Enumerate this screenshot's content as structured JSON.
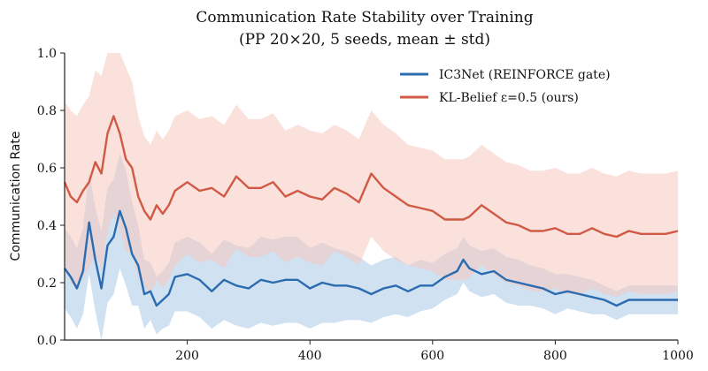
{
  "chart_data": {
    "type": "line",
    "title": "Communication Rate Stability over Training",
    "subtitle": "(PP 20×20, 5 seeds, mean ± std)",
    "xlabel": "",
    "ylabel": "Communication Rate",
    "xlim": [
      0,
      1000
    ],
    "ylim": [
      0.0,
      1.0
    ],
    "xticks": [
      200,
      400,
      600,
      800,
      1000
    ],
    "yticks": [
      0.0,
      0.2,
      0.4,
      0.6,
      0.8,
      1.0
    ],
    "xtick_labels": [
      "200",
      "400",
      "600",
      "800",
      "1000"
    ],
    "ytick_labels": [
      "0.0",
      "0.2",
      "0.4",
      "0.6",
      "0.8",
      "1.0"
    ],
    "grid": false,
    "legend_position": "top-right",
    "series": [
      {
        "name": "IC3Net (REINFORCE gate)",
        "color": "#2b6cb0",
        "band_color": "#aac8e8",
        "x": [
          0,
          10,
          20,
          30,
          40,
          50,
          60,
          70,
          80,
          90,
          100,
          110,
          120,
          130,
          140,
          150,
          160,
          170,
          180,
          200,
          220,
          240,
          260,
          280,
          300,
          320,
          340,
          360,
          380,
          400,
          420,
          440,
          460,
          480,
          500,
          520,
          540,
          560,
          580,
          600,
          620,
          640,
          650,
          660,
          680,
          700,
          720,
          740,
          760,
          780,
          800,
          820,
          840,
          860,
          880,
          900,
          920,
          940,
          960,
          980,
          1000
        ],
        "y": [
          0.25,
          0.22,
          0.18,
          0.24,
          0.41,
          0.28,
          0.18,
          0.33,
          0.36,
          0.45,
          0.39,
          0.3,
          0.26,
          0.16,
          0.17,
          0.12,
          0.14,
          0.16,
          0.22,
          0.23,
          0.21,
          0.17,
          0.21,
          0.19,
          0.18,
          0.21,
          0.2,
          0.21,
          0.21,
          0.18,
          0.2,
          0.19,
          0.19,
          0.18,
          0.16,
          0.18,
          0.19,
          0.17,
          0.19,
          0.19,
          0.22,
          0.24,
          0.28,
          0.25,
          0.23,
          0.24,
          0.21,
          0.2,
          0.19,
          0.18,
          0.16,
          0.17,
          0.16,
          0.15,
          0.14,
          0.12,
          0.14,
          0.14,
          0.14,
          0.14,
          0.14
        ],
        "std": [
          0.14,
          0.14,
          0.14,
          0.15,
          0.18,
          0.18,
          0.2,
          0.2,
          0.2,
          0.2,
          0.2,
          0.18,
          0.14,
          0.12,
          0.1,
          0.1,
          0.1,
          0.11,
          0.12,
          0.13,
          0.13,
          0.13,
          0.14,
          0.14,
          0.14,
          0.15,
          0.15,
          0.15,
          0.15,
          0.14,
          0.14,
          0.13,
          0.12,
          0.11,
          0.1,
          0.1,
          0.1,
          0.09,
          0.09,
          0.08,
          0.08,
          0.08,
          0.08,
          0.08,
          0.08,
          0.08,
          0.08,
          0.08,
          0.07,
          0.07,
          0.07,
          0.06,
          0.06,
          0.06,
          0.05,
          0.05,
          0.05,
          0.05,
          0.05,
          0.05,
          0.05
        ]
      },
      {
        "name": "KL-Belief ε=0.5 (ours)",
        "color": "#d05a45",
        "band_color": "#f5c8bf",
        "x": [
          0,
          10,
          20,
          30,
          40,
          50,
          60,
          70,
          80,
          90,
          100,
          110,
          120,
          130,
          140,
          150,
          160,
          170,
          180,
          200,
          220,
          240,
          260,
          280,
          300,
          320,
          340,
          360,
          380,
          400,
          420,
          440,
          460,
          480,
          500,
          520,
          540,
          560,
          580,
          600,
          620,
          640,
          650,
          660,
          680,
          700,
          720,
          740,
          760,
          780,
          800,
          820,
          840,
          860,
          880,
          900,
          920,
          940,
          960,
          980,
          1000
        ],
        "y": [
          0.55,
          0.5,
          0.48,
          0.52,
          0.55,
          0.62,
          0.58,
          0.72,
          0.78,
          0.72,
          0.63,
          0.6,
          0.5,
          0.45,
          0.42,
          0.47,
          0.44,
          0.47,
          0.52,
          0.55,
          0.52,
          0.53,
          0.5,
          0.57,
          0.53,
          0.53,
          0.55,
          0.5,
          0.52,
          0.5,
          0.49,
          0.53,
          0.51,
          0.48,
          0.58,
          0.53,
          0.5,
          0.47,
          0.46,
          0.45,
          0.42,
          0.42,
          0.42,
          0.43,
          0.47,
          0.44,
          0.41,
          0.4,
          0.38,
          0.38,
          0.39,
          0.37,
          0.37,
          0.39,
          0.37,
          0.36,
          0.38,
          0.37,
          0.37,
          0.37,
          0.38
        ],
        "std": [
          0.28,
          0.3,
          0.3,
          0.3,
          0.3,
          0.32,
          0.34,
          0.34,
          0.34,
          0.34,
          0.32,
          0.3,
          0.28,
          0.26,
          0.26,
          0.26,
          0.26,
          0.26,
          0.26,
          0.25,
          0.25,
          0.25,
          0.25,
          0.25,
          0.24,
          0.24,
          0.24,
          0.23,
          0.23,
          0.23,
          0.23,
          0.22,
          0.22,
          0.22,
          0.22,
          0.22,
          0.22,
          0.21,
          0.21,
          0.21,
          0.21,
          0.21,
          0.21,
          0.21,
          0.21,
          0.21,
          0.21,
          0.21,
          0.21,
          0.21,
          0.21,
          0.21,
          0.21,
          0.21,
          0.21,
          0.21,
          0.21,
          0.21,
          0.21,
          0.21,
          0.21
        ]
      }
    ]
  }
}
